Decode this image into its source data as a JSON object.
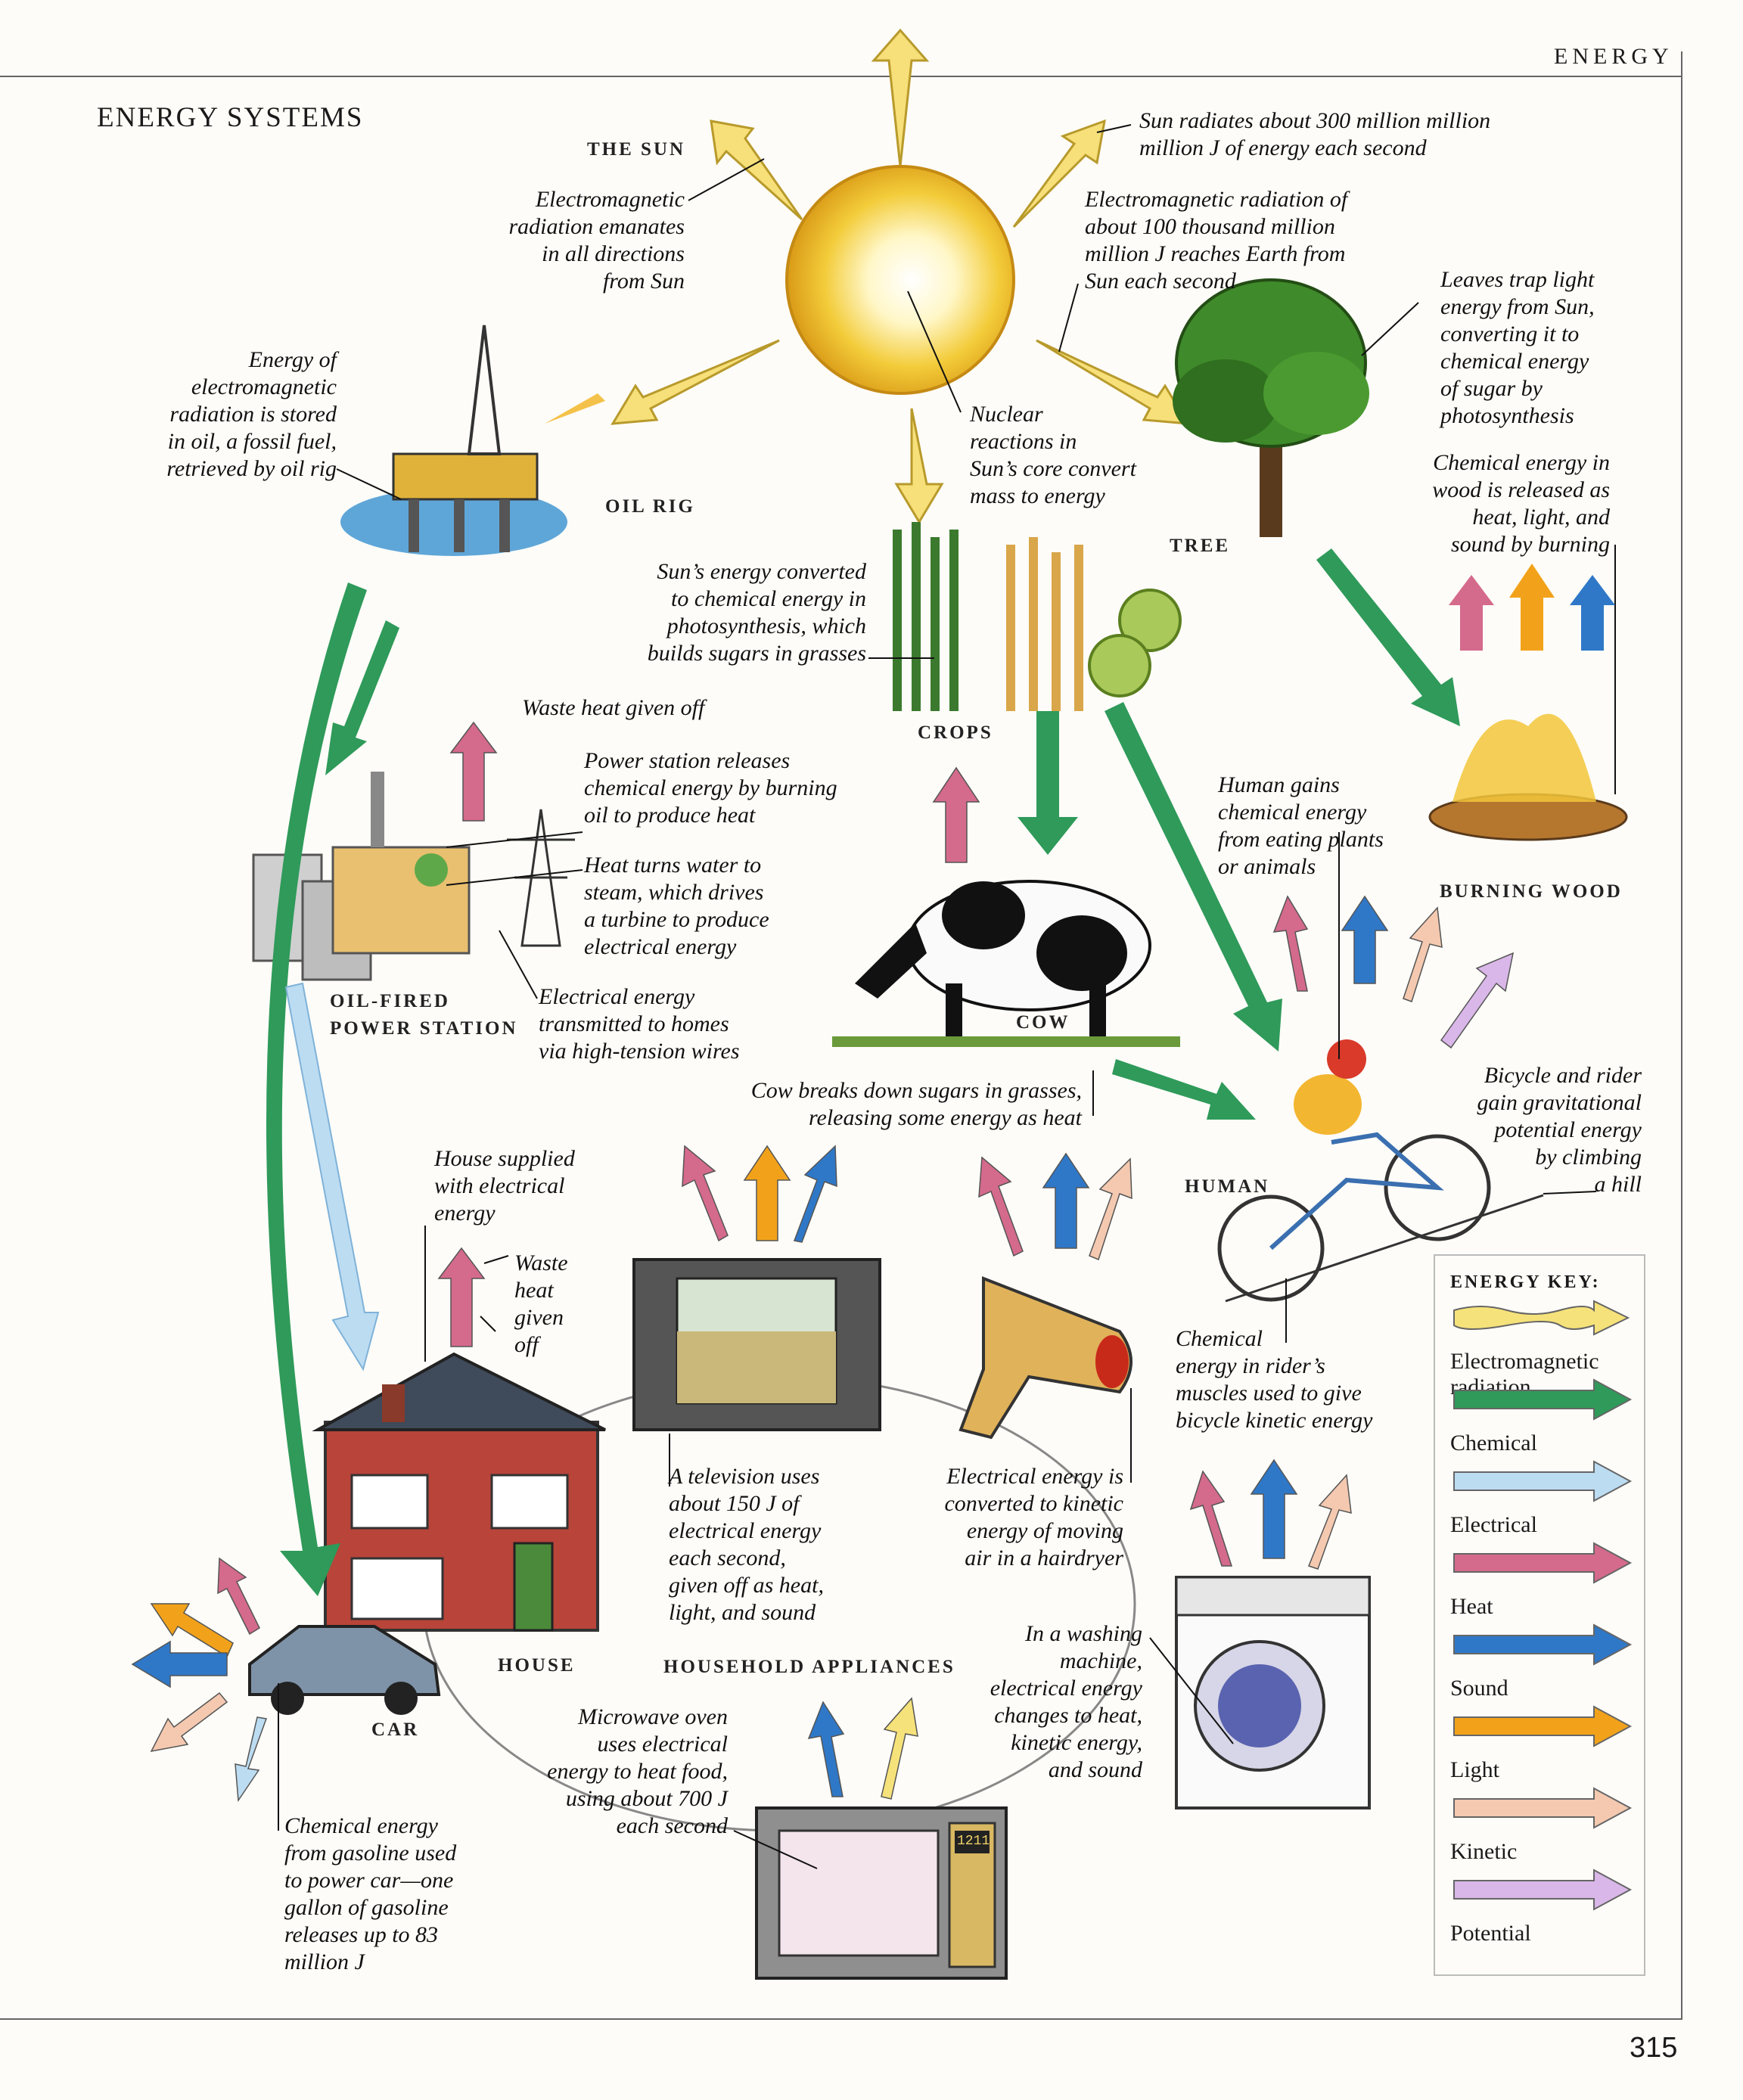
{
  "header": "ENERGY",
  "title": "ENERGY SYSTEMS",
  "page_number": "315",
  "labels": {
    "sun": "THE SUN",
    "oil_rig": "OIL RIG",
    "tree": "TREE",
    "crops": "CROPS",
    "burning_wood": "BURNING WOOD",
    "power_station_1": "OIL-FIRED",
    "power_station_2": "POWER STATION",
    "cow": "COW",
    "human": "HUMAN",
    "house": "HOUSE",
    "household_appliances": "HOUSEHOLD APPLIANCES",
    "car": "CAR"
  },
  "annotations": {
    "sun_radiates": [
      "Sun radiates about 300 million million",
      "million J of  energy each second"
    ],
    "em_emanates": [
      "Electromagnetic",
      "radiation emanates",
      "in all directions",
      "from Sun"
    ],
    "em_reaches": [
      "Electromagnetic radiation of",
      "about 100 thousand million",
      "million J reaches Earth from",
      "Sun each second"
    ],
    "leaves": [
      "Leaves trap light",
      "energy from Sun,",
      "converting it to",
      "chemical energy",
      "of  sugar by",
      "photosynthesis"
    ],
    "oil_stored": [
      "Energy of",
      "electromagnetic",
      "radiation is stored",
      "in oil, a fossil fuel,",
      "retrieved by oil rig"
    ],
    "nuclear": [
      "Nuclear",
      "reactions in",
      "Sun’s core convert",
      "mass to energy"
    ],
    "wood_chem": [
      "Chemical energy in",
      "wood is released as",
      "heat, light, and",
      "sound by burning"
    ],
    "sun_converted": [
      "Sun’s energy converted",
      "to chemical energy in",
      "photosynthesis, which",
      "builds sugars in grasses"
    ],
    "waste_heat": [
      "Waste heat given off"
    ],
    "power_releases": [
      "Power station releases",
      "chemical energy by burning",
      "oil to produce heat"
    ],
    "human_gains": [
      "Human gains",
      "chemical energy",
      "from eating plants",
      "or animals"
    ],
    "heat_turns": [
      "Heat turns water to",
      "steam, which drives",
      "a turbine to produce",
      "electrical energy"
    ],
    "elec_transmitted": [
      "Electrical energy",
      "transmitted to homes",
      "via high-tension wires"
    ],
    "cow_breaks": [
      "Cow breaks down sugars in grasses,",
      "releasing some energy as heat"
    ],
    "bicycle_gain": [
      "Bicycle and rider",
      "gain gravitational",
      "potential energy",
      "by climbing",
      "a hill"
    ],
    "house_supplied": [
      "House supplied",
      "with electrical",
      "energy"
    ],
    "house_waste": [
      "Waste",
      "heat",
      "given",
      "off"
    ],
    "chem_rider": [
      "Chemical",
      "energy in rider’s",
      "muscles used to give",
      "bicycle kinetic energy"
    ],
    "tv": [
      "A television uses",
      "about 150 J of",
      "electrical energy",
      "each second,",
      "given off  as heat,",
      "light, and sound"
    ],
    "hairdryer": [
      "Electrical energy is",
      "converted to kinetic",
      "energy of  moving",
      "air in a hairdryer"
    ],
    "washing": [
      "In a washing",
      "machine,",
      "electrical energy",
      "changes to heat,",
      "kinetic energy,",
      "and sound"
    ],
    "microwave": [
      "Microwave oven",
      "uses electrical",
      "energy to heat food,",
      "using about 700 J",
      "each second"
    ],
    "car_chem": [
      "Chemical energy",
      "from gasoline used",
      "to power car—one",
      "gallon of  gasoline",
      "releases up to 83",
      "million J"
    ]
  },
  "microwave_display": "1211",
  "energy_key": {
    "title": "ENERGY KEY:",
    "items": [
      {
        "label": "Electromagnetic radiation",
        "color": "#f6e27a",
        "icon": "wavy-arrow-icon"
      },
      {
        "label": "Chemical",
        "color": "#2f9a5a",
        "icon": "arrow-icon"
      },
      {
        "label": "Electrical",
        "color": "#bcdcf2",
        "icon": "arrow-icon"
      },
      {
        "label": "Heat",
        "color": "#d46a8c",
        "icon": "arrow-icon"
      },
      {
        "label": "Sound",
        "color": "#2f78c8",
        "icon": "arrow-icon"
      },
      {
        "label": "Light",
        "color": "#f2a21a",
        "icon": "arrow-icon"
      },
      {
        "label": "Kinetic",
        "color": "#f4c9b0",
        "icon": "arrow-icon"
      },
      {
        "label": "Potential",
        "color": "#d9b7e8",
        "icon": "arrow-icon"
      }
    ]
  }
}
